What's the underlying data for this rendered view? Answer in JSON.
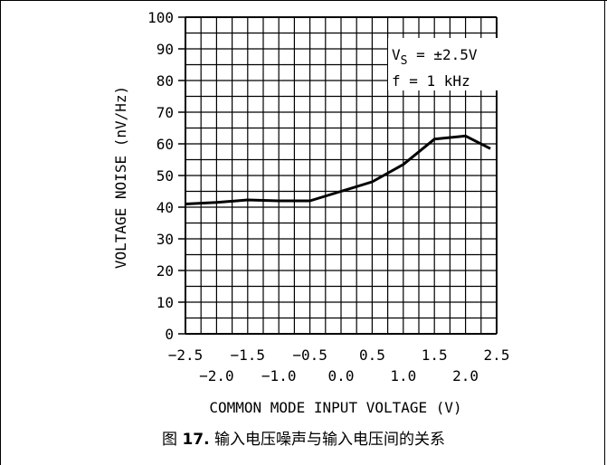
{
  "chart_data": {
    "type": "line",
    "xlabel": "COMMON MODE INPUT VOLTAGE (V)",
    "ylabel": "VOLTAGE NOISE (nV/Hz)",
    "xlim": [
      -2.5,
      2.5
    ],
    "ylim": [
      0,
      100
    ],
    "x_ticks_top": [
      "-2.5",
      "-1.5",
      "-0.5",
      "0.5",
      "1.5",
      "2.5"
    ],
    "x_ticks_bottom": [
      "-2.0",
      "-1.0",
      "0.0",
      "1.0",
      "2.0"
    ],
    "y_ticks": [
      "0",
      "10",
      "20",
      "30",
      "40",
      "50",
      "60",
      "70",
      "80",
      "90",
      "100"
    ],
    "grid": true,
    "annotation": {
      "vs_main": "V",
      "vs_sub": "S",
      "vs_value": " = ±2.5V",
      "freq": "f = 1 kHz"
    },
    "series": [
      {
        "x": [
          -2.5,
          -2.0,
          -1.5,
          -1.0,
          -0.5,
          0.0,
          0.5,
          1.0,
          1.5,
          2.0,
          2.4
        ],
        "y": [
          41,
          41.5,
          42.3,
          42,
          42,
          45,
          48,
          53.5,
          61.5,
          62.5,
          58.5
        ]
      }
    ]
  },
  "caption": {
    "prefix": "图 ",
    "number": "17.",
    "text": " 输入电压噪声与输入电压间的关系"
  }
}
